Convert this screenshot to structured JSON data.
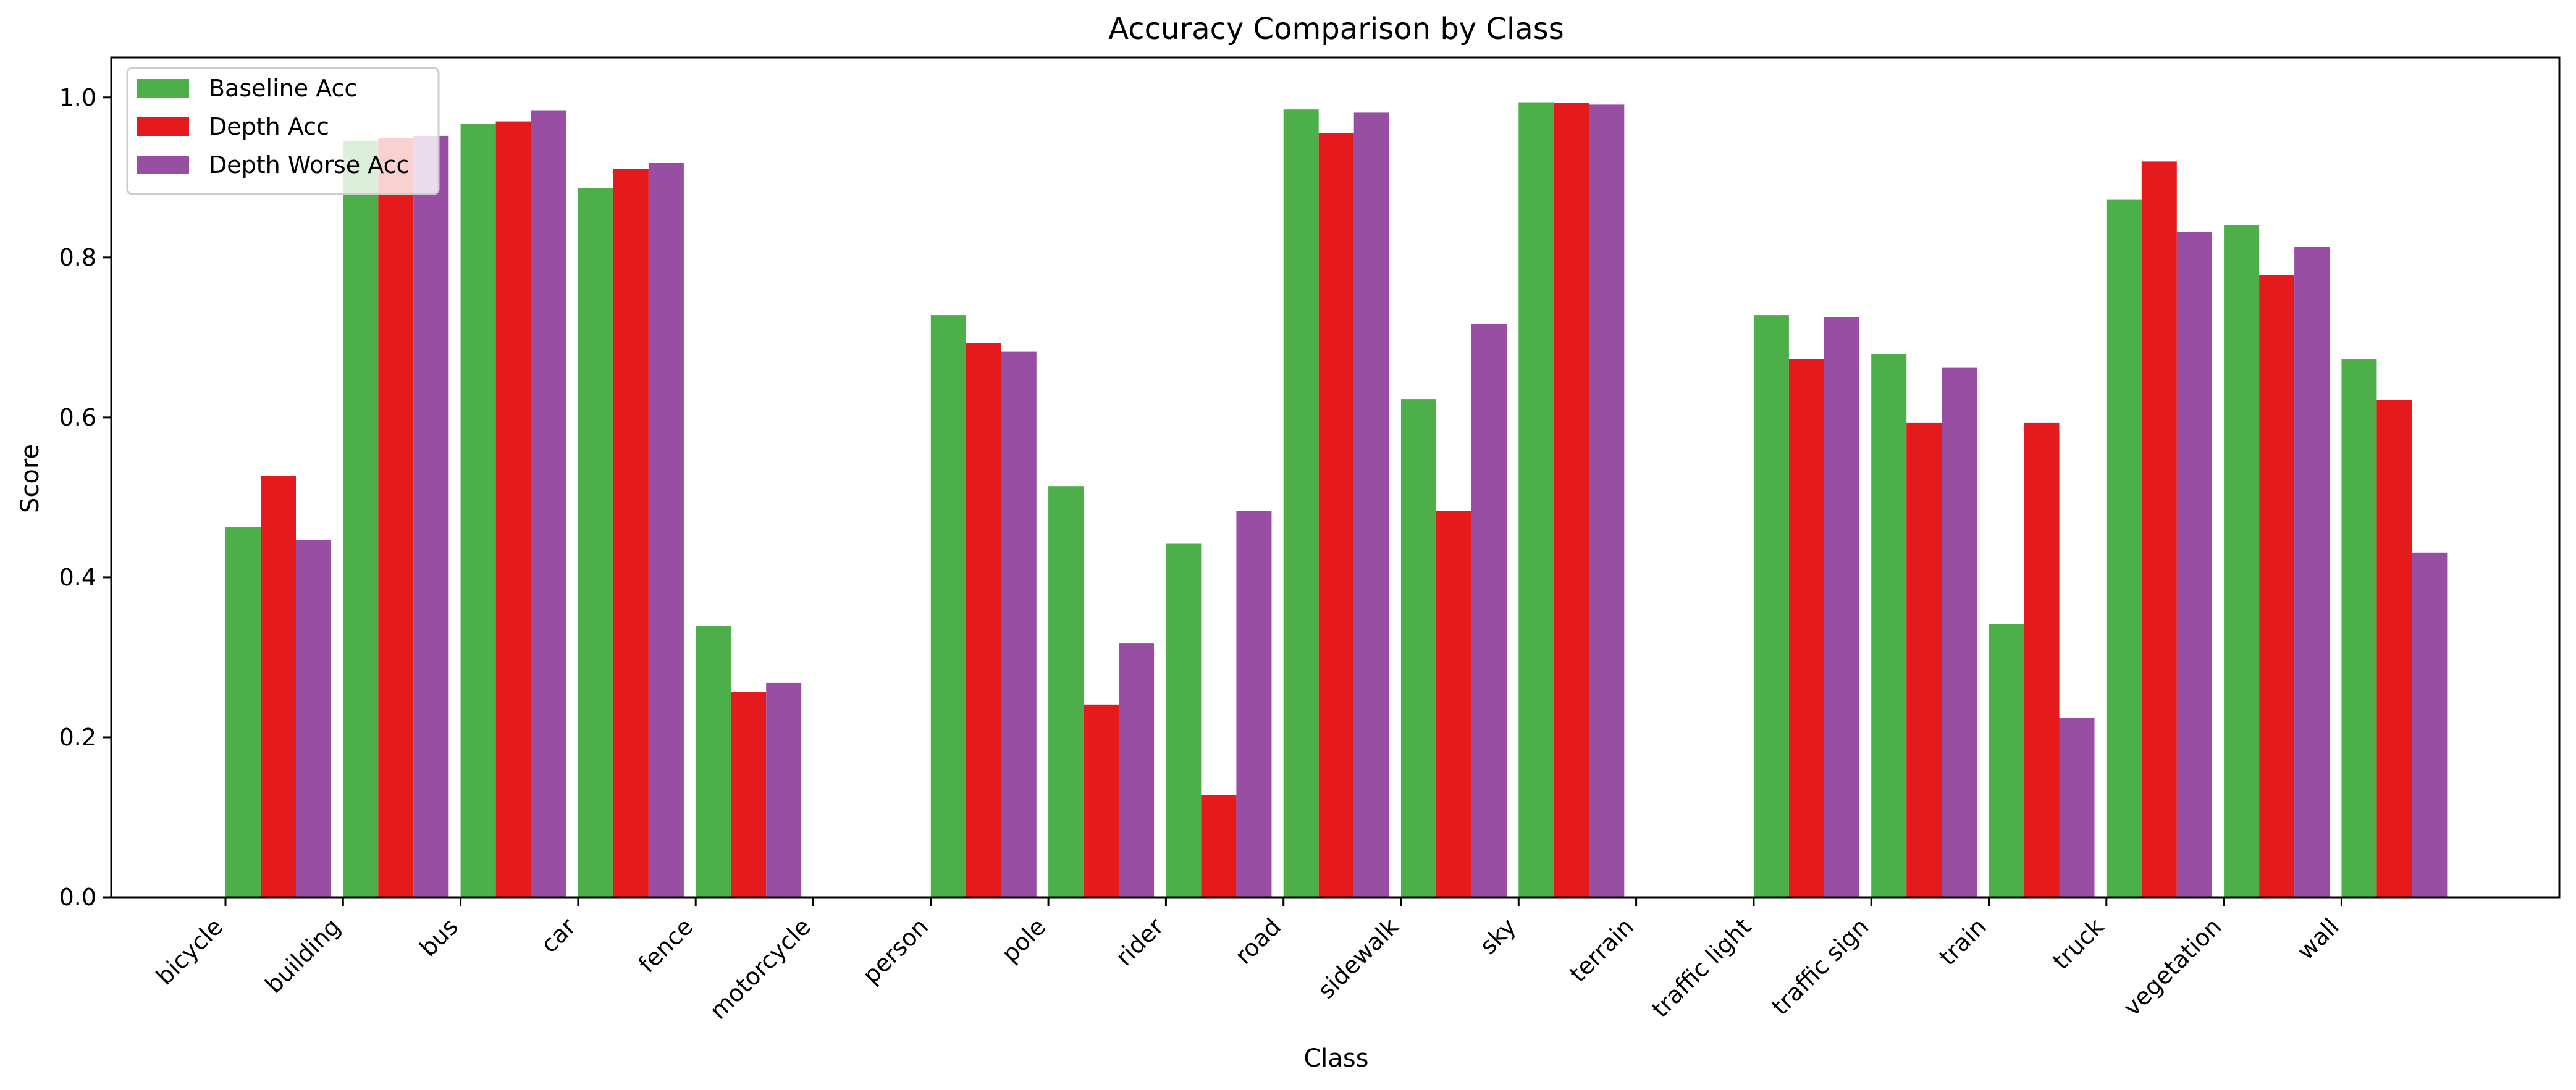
{
  "chart_data": {
    "type": "bar",
    "title": "Accuracy Comparison by Class",
    "xlabel": "Class",
    "ylabel": "Score",
    "ylim": [
      0,
      1.05
    ],
    "yticks": [
      0.0,
      0.2,
      0.4,
      0.6,
      0.8,
      1.0
    ],
    "ytick_labels": [
      "0.0",
      "0.2",
      "0.4",
      "0.6",
      "0.8",
      "1.0"
    ],
    "grid": false,
    "legend_position": "top-left",
    "categories": [
      "bicycle",
      "building",
      "bus",
      "car",
      "fence",
      "motorcycle",
      "person",
      "pole",
      "rider",
      "road",
      "sidewalk",
      "sky",
      "terrain",
      "traffic light",
      "traffic sign",
      "train",
      "truck",
      "vegetation",
      "wall"
    ],
    "series": [
      {
        "name": "Baseline Acc",
        "color": "#4daf4a",
        "values": [
          0.463,
          0.946,
          0.967,
          0.887,
          0.339,
          0.0,
          0.728,
          0.514,
          0.442,
          0.985,
          0.623,
          0.994,
          0.0,
          0.728,
          0.679,
          0.342,
          0.872,
          0.84,
          0.673
        ]
      },
      {
        "name": "Depth Acc",
        "color": "#e41a1c",
        "values": [
          0.527,
          0.949,
          0.97,
          0.911,
          0.257,
          0.0,
          0.693,
          0.241,
          0.128,
          0.955,
          0.483,
          0.993,
          0.0,
          0.673,
          0.593,
          0.593,
          0.92,
          0.778,
          0.622
        ]
      },
      {
        "name": "Depth Worse Acc",
        "color": "#984ea3",
        "values": [
          0.447,
          0.952,
          0.984,
          0.918,
          0.268,
          0.0,
          0.682,
          0.318,
          0.483,
          0.981,
          0.717,
          0.991,
          0.0,
          0.725,
          0.662,
          0.224,
          0.832,
          0.813,
          0.431
        ]
      }
    ]
  }
}
